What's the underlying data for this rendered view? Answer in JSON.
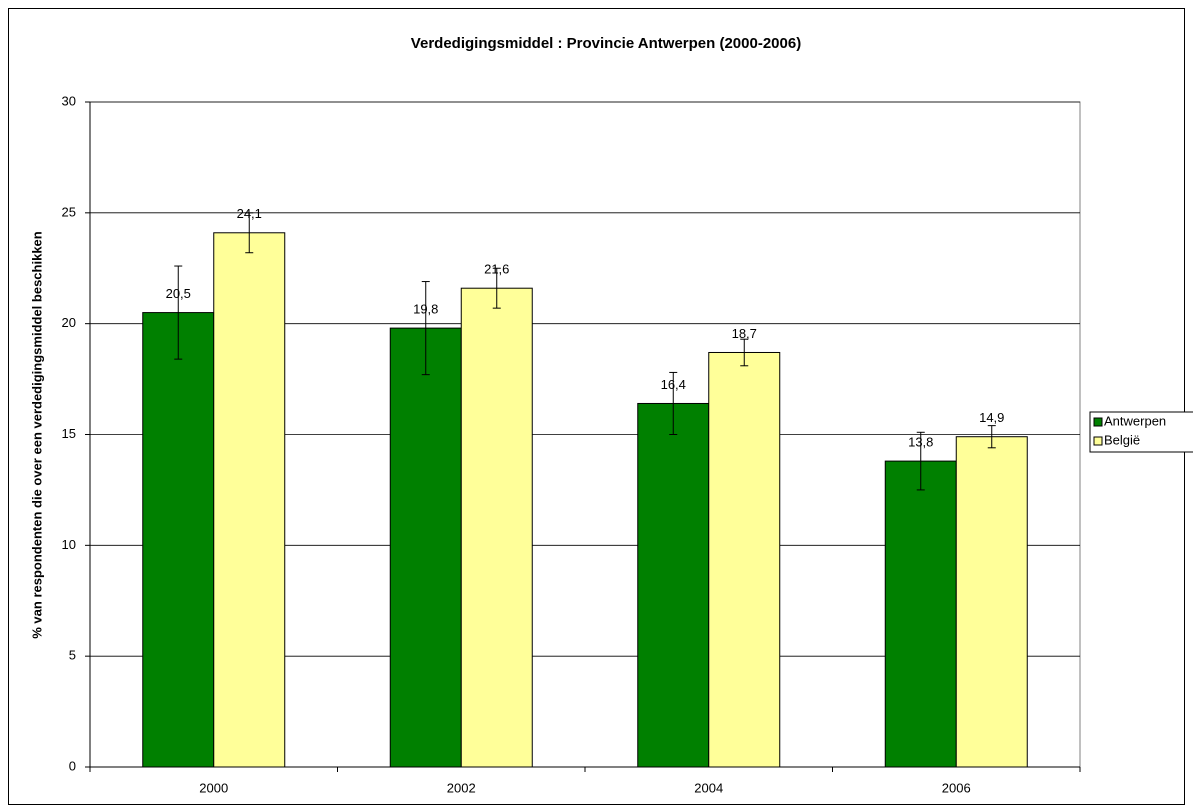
{
  "chart_data": {
    "type": "bar",
    "title": "Verdedigingsmiddel : Provincie Antwerpen (2000-2006)",
    "y_label": "% van respondenten die over een verdedigingsmiddel beschikken",
    "categories": [
      "2000",
      "2002",
      "2004",
      "2006"
    ],
    "series": [
      {
        "name": "Antwerpen",
        "color": "#008000",
        "values": [
          20.5,
          19.8,
          16.4,
          13.8
        ],
        "value_labels": [
          "20,5",
          "19,8",
          "16,4",
          "13,8"
        ],
        "errors": [
          2.1,
          2.1,
          1.4,
          1.3
        ]
      },
      {
        "name": "België",
        "color": "#ffff99",
        "values": [
          24.1,
          21.6,
          18.7,
          14.9
        ],
        "value_labels": [
          "24,1",
          "21,6",
          "18,7",
          "14,9"
        ],
        "errors": [
          0.9,
          0.9,
          0.6,
          0.5
        ]
      }
    ],
    "ylim": [
      0,
      30
    ],
    "yticks": [
      0,
      5,
      10,
      15,
      20,
      25,
      30
    ],
    "grid": true,
    "legend": "right"
  }
}
